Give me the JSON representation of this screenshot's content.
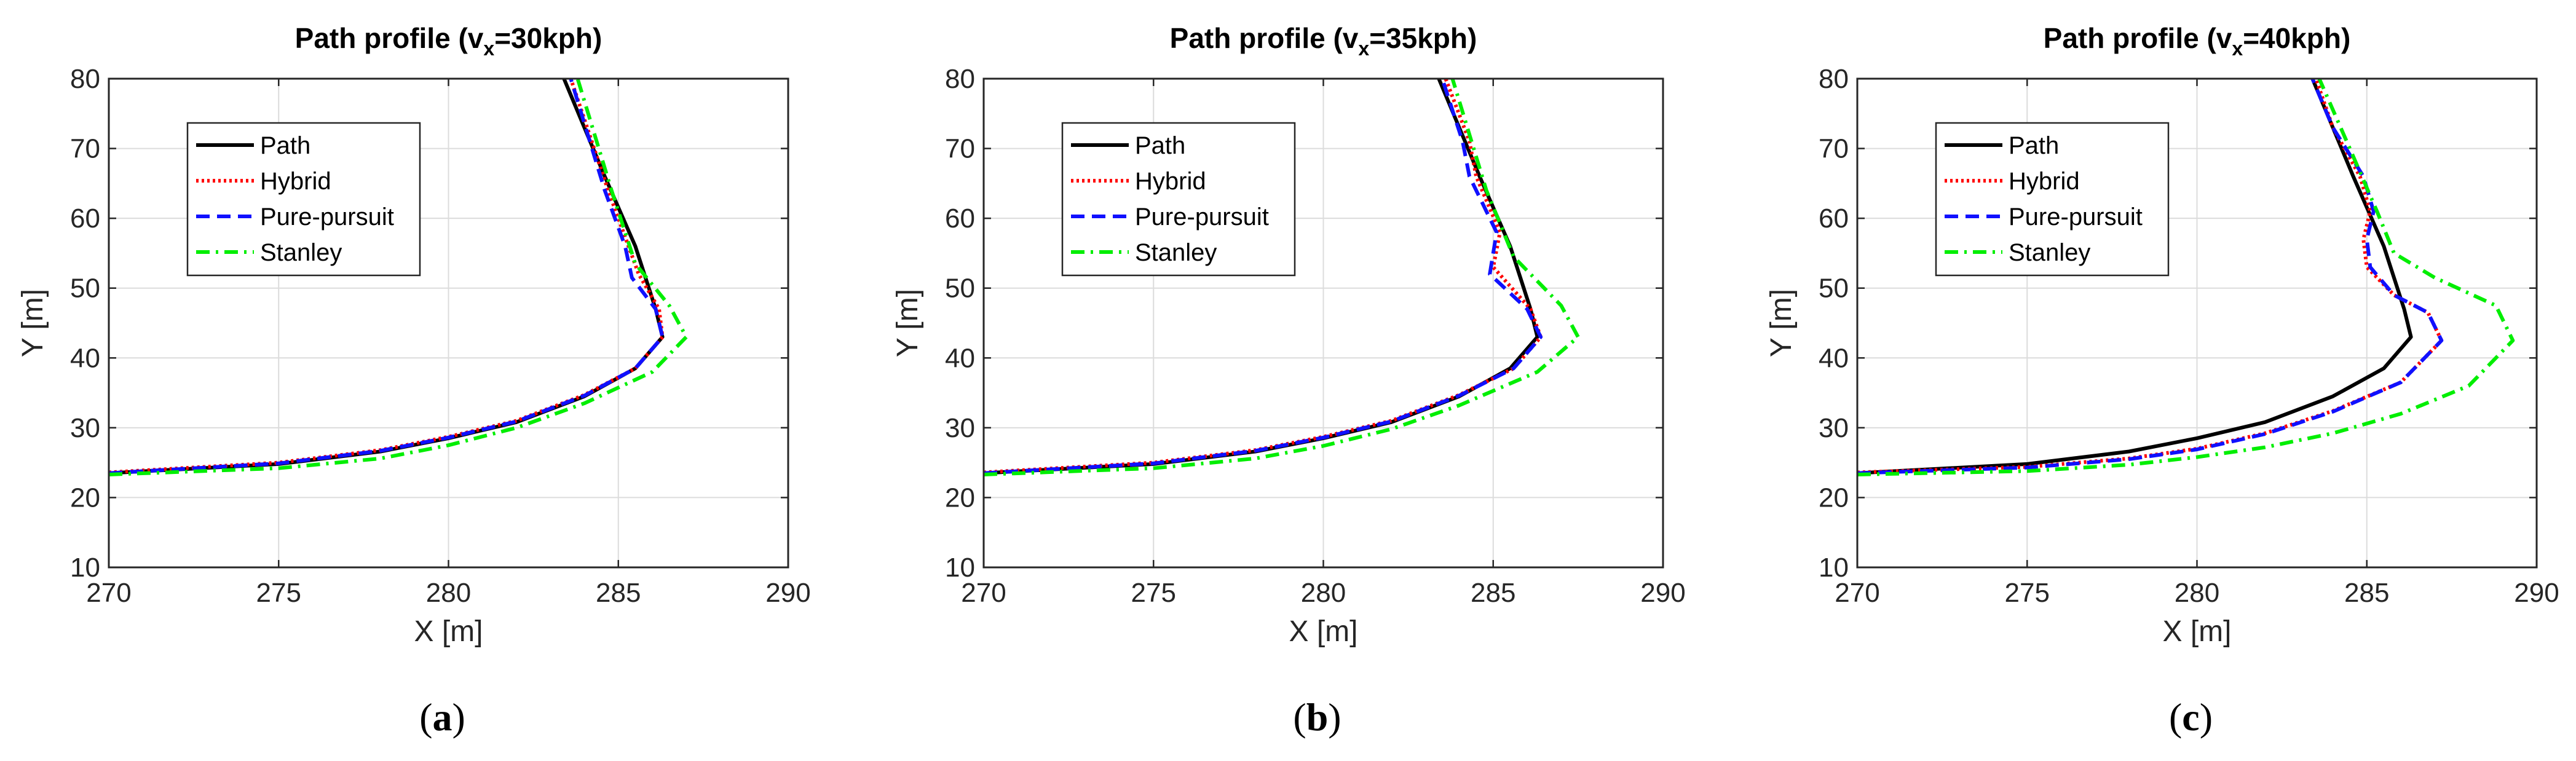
{
  "chart_data": [
    {
      "type": "line",
      "panel_label": "a",
      "title_prefix": "Path profile (v",
      "title_sub": "x",
      "title_suffix": "=30kph)",
      "xlabel": "X [m]",
      "ylabel": "Y [m]",
      "xlim": [
        270,
        290
      ],
      "ylim": [
        10,
        80
      ],
      "xticks": [
        270,
        275,
        280,
        285,
        290
      ],
      "yticks": [
        10,
        20,
        30,
        40,
        50,
        60,
        70,
        80
      ],
      "grid": true,
      "legend_position": "top-left",
      "series": [
        {
          "name": "Path",
          "color": "#000000",
          "style": "solid",
          "x": [
            270,
            275,
            278,
            280,
            282,
            284,
            285.5,
            286.3,
            286.1,
            285.5,
            284.6,
            283.4
          ],
          "y": [
            23.5,
            24.8,
            26.6,
            28.5,
            30.8,
            34.5,
            38.5,
            43,
            47,
            56,
            66,
            80
          ]
        },
        {
          "name": "Hybrid",
          "color": "#ff0000",
          "style": "dotted",
          "x": [
            270,
            275,
            278,
            280,
            282,
            284,
            285.5,
            286.3,
            286.2,
            285.6,
            285.3,
            284.7,
            283.6
          ],
          "y": [
            23.6,
            25.0,
            26.8,
            28.7,
            31.0,
            34.7,
            38.5,
            43,
            47,
            52,
            56,
            64,
            80
          ]
        },
        {
          "name": "Pure-pursuit",
          "color": "#1010ff",
          "style": "dashed",
          "x": [
            270,
            275,
            278,
            280,
            282,
            284,
            285.5,
            286.3,
            286.1,
            285.4,
            285.2,
            284.6,
            283.6
          ],
          "y": [
            23.5,
            24.9,
            26.7,
            28.6,
            30.9,
            34.6,
            38.5,
            43,
            47,
            51.5,
            56,
            64,
            80
          ]
        },
        {
          "name": "Stanley",
          "color": "#00ee00",
          "style": "dashdot",
          "x": [
            270,
            275,
            278,
            280,
            282,
            284,
            286,
            287,
            286.5,
            285.5,
            284.8,
            283.8
          ],
          "y": [
            23.3,
            24.2,
            25.6,
            27.5,
            30.0,
            33.5,
            38,
            43,
            47.5,
            53.5,
            64,
            80
          ]
        }
      ]
    },
    {
      "type": "line",
      "panel_label": "b",
      "title_prefix": "Path profile (v",
      "title_sub": "x",
      "title_suffix": "=35kph)",
      "xlabel": "X [m]",
      "ylabel": "Y [m]",
      "xlim": [
        270,
        290
      ],
      "ylim": [
        10,
        80
      ],
      "xticks": [
        270,
        275,
        280,
        285,
        290
      ],
      "yticks": [
        10,
        20,
        30,
        40,
        50,
        60,
        70,
        80
      ],
      "grid": true,
      "legend_position": "top-left",
      "series": [
        {
          "name": "Path",
          "color": "#000000",
          "style": "solid",
          "x": [
            270,
            275,
            278,
            280,
            282,
            284,
            285.5,
            286.3,
            286.1,
            285.5,
            284.6,
            283.4
          ],
          "y": [
            23.5,
            24.8,
            26.6,
            28.5,
            30.8,
            34.5,
            38.5,
            43,
            47,
            56,
            66,
            80
          ]
        },
        {
          "name": "Hybrid",
          "color": "#ff0000",
          "style": "dotted",
          "x": [
            270,
            275,
            278,
            280,
            282,
            284,
            285.6,
            286.4,
            286.1,
            285.0,
            285.2,
            284.5,
            284.3,
            283.6
          ],
          "y": [
            23.6,
            25.0,
            26.8,
            28.7,
            31.0,
            34.7,
            38.5,
            43,
            47,
            53,
            58,
            66,
            71,
            80
          ]
        },
        {
          "name": "Pure-pursuit",
          "color": "#1010ff",
          "style": "dashed",
          "x": [
            270,
            275,
            278,
            280,
            282,
            284,
            285.6,
            286.4,
            286.0,
            284.9,
            285.1,
            284.3,
            284.1,
            283.5
          ],
          "y": [
            23.5,
            24.9,
            26.7,
            28.6,
            30.9,
            34.6,
            38.5,
            43,
            47,
            52,
            58,
            66,
            71,
            80
          ]
        },
        {
          "name": "Stanley",
          "color": "#00ee00",
          "style": "dashdot",
          "x": [
            270,
            275,
            278,
            280,
            282,
            284,
            286.3,
            287.5,
            287.0,
            285.6,
            284.8,
            283.8
          ],
          "y": [
            23.3,
            24.2,
            25.6,
            27.4,
            29.8,
            33.2,
            38,
            43,
            47.5,
            54.5,
            64,
            80
          ]
        }
      ]
    },
    {
      "type": "line",
      "panel_label": "c",
      "title_prefix": "Path profile (v",
      "title_sub": "x",
      "title_suffix": "=40kph)",
      "xlabel": "X [m]",
      "ylabel": "Y [m]",
      "xlim": [
        270,
        290
      ],
      "ylim": [
        10,
        80
      ],
      "xticks": [
        270,
        275,
        280,
        285,
        290
      ],
      "yticks": [
        10,
        20,
        30,
        40,
        50,
        60,
        70,
        80
      ],
      "grid": true,
      "legend_position": "top-left",
      "series": [
        {
          "name": "Path",
          "color": "#000000",
          "style": "solid",
          "x": [
            270,
            275,
            278,
            280,
            282,
            284,
            285.5,
            286.3,
            286.1,
            285.5,
            284.6,
            283.4
          ],
          "y": [
            23.5,
            24.8,
            26.6,
            28.5,
            30.8,
            34.5,
            38.5,
            43,
            47,
            56,
            66,
            80
          ]
        },
        {
          "name": "Hybrid",
          "color": "#ff0000",
          "style": "dotted",
          "x": [
            270,
            275,
            278,
            280,
            282,
            284,
            286,
            287.2,
            286.8,
            285.8,
            285.0,
            284.9,
            285.1,
            284.8,
            284.0,
            283.5
          ],
          "y": [
            23.6,
            24.4,
            25.6,
            27.0,
            29.2,
            32.4,
            36.5,
            42.5,
            46.5,
            49,
            53,
            57,
            61,
            66,
            73,
            80
          ]
        },
        {
          "name": "Pure-pursuit",
          "color": "#1010ff",
          "style": "dashed",
          "x": [
            270,
            275,
            278,
            280,
            282,
            284,
            286,
            287.2,
            286.8,
            285.8,
            285.1,
            285.0,
            285.2,
            284.9,
            284.0,
            283.4
          ],
          "y": [
            23.5,
            24.3,
            25.5,
            26.9,
            29.1,
            32.3,
            36.5,
            42.5,
            46.5,
            49,
            53,
            57,
            61,
            66,
            73,
            80
          ]
        },
        {
          "name": "Stanley",
          "color": "#00ee00",
          "style": "dashdot",
          "x": [
            270,
            275,
            278,
            280,
            282,
            284,
            286,
            288,
            289.3,
            288.8,
            287.0,
            285.8,
            285.3,
            284.5,
            283.6
          ],
          "y": [
            23.3,
            23.8,
            24.7,
            25.8,
            27.2,
            29.2,
            32,
            36,
            42.5,
            47.5,
            51.5,
            55,
            61,
            70,
            80
          ]
        }
      ]
    }
  ]
}
